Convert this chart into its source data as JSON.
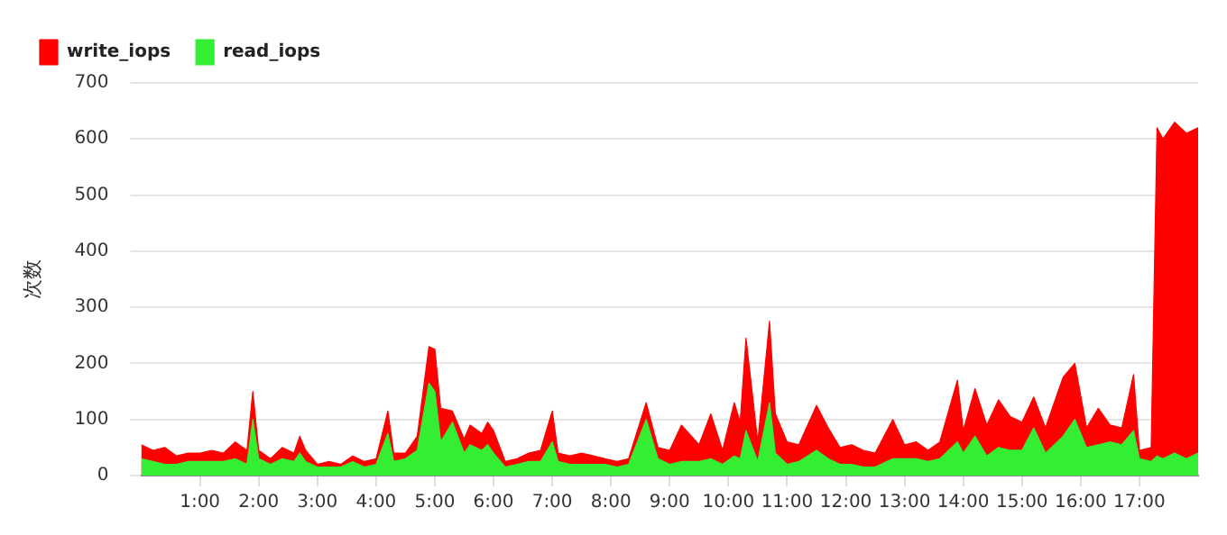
{
  "chart_data": {
    "type": "area",
    "ylabel": "次数",
    "legend": "top left",
    "grid": "y",
    "xlim": [
      0,
      18
    ],
    "xticks": [
      {
        "value": 1,
        "label": "1:00"
      },
      {
        "value": 2,
        "label": "2:00"
      },
      {
        "value": 3,
        "label": "3:00"
      },
      {
        "value": 4,
        "label": "4:00"
      },
      {
        "value": 5,
        "label": "5:00"
      },
      {
        "value": 6,
        "label": "6:00"
      },
      {
        "value": 7,
        "label": "7:00"
      },
      {
        "value": 8,
        "label": "8:00"
      },
      {
        "value": 9,
        "label": "9:00"
      },
      {
        "value": 10,
        "label": "10:00"
      },
      {
        "value": 11,
        "label": "11:00"
      },
      {
        "value": 12,
        "label": "12:00"
      },
      {
        "value": 13,
        "label": "13:00"
      },
      {
        "value": 14,
        "label": "14:00"
      },
      {
        "value": 15,
        "label": "15:00"
      },
      {
        "value": 16,
        "label": "16:00"
      },
      {
        "value": 17,
        "label": "17:00"
      }
    ],
    "ylim": [
      0,
      700
    ],
    "yticks": [
      0,
      100,
      200,
      300,
      400,
      500,
      600,
      700
    ],
    "x": [
      0,
      0.2,
      0.4,
      0.6,
      0.8,
      1.0,
      1.2,
      1.4,
      1.6,
      1.8,
      1.9,
      2.0,
      2.2,
      2.4,
      2.6,
      2.7,
      2.8,
      3.0,
      3.2,
      3.4,
      3.6,
      3.8,
      4.0,
      4.2,
      4.3,
      4.5,
      4.7,
      4.9,
      5.0,
      5.1,
      5.3,
      5.5,
      5.6,
      5.8,
      5.9,
      6.0,
      6.2,
      6.4,
      6.6,
      6.8,
      7.0,
      7.1,
      7.3,
      7.5,
      7.7,
      7.9,
      8.1,
      8.3,
      8.6,
      8.8,
      9.0,
      9.2,
      9.5,
      9.7,
      9.9,
      10.1,
      10.2,
      10.3,
      10.5,
      10.7,
      10.8,
      11.0,
      11.2,
      11.5,
      11.7,
      11.9,
      12.1,
      12.3,
      12.5,
      12.8,
      13.0,
      13.2,
      13.4,
      13.6,
      13.9,
      14.0,
      14.2,
      14.4,
      14.6,
      14.8,
      15.0,
      15.2,
      15.4,
      15.7,
      15.9,
      16.1,
      16.3,
      16.5,
      16.7,
      16.9,
      17.0,
      17.2,
      17.3,
      17.4,
      17.6,
      17.8,
      18.0
    ],
    "series": [
      {
        "name": "write_iops",
        "color": "#ff0000",
        "values": [
          55,
          45,
          50,
          35,
          40,
          40,
          45,
          40,
          60,
          45,
          150,
          45,
          30,
          50,
          40,
          70,
          45,
          20,
          25,
          20,
          35,
          25,
          30,
          115,
          40,
          40,
          70,
          230,
          225,
          120,
          115,
          65,
          90,
          75,
          95,
          80,
          25,
          30,
          40,
          45,
          115,
          40,
          35,
          40,
          35,
          30,
          25,
          30,
          130,
          50,
          45,
          90,
          55,
          110,
          45,
          130,
          95,
          245,
          60,
          275,
          110,
          60,
          55,
          125,
          85,
          50,
          55,
          45,
          40,
          100,
          55,
          60,
          45,
          60,
          170,
          80,
          155,
          90,
          135,
          105,
          95,
          140,
          85,
          175,
          200,
          85,
          120,
          90,
          85,
          180,
          45,
          50,
          620,
          600,
          630,
          610,
          620
        ]
      },
      {
        "name": "read_iops",
        "color": "#33ee33",
        "values": [
          30,
          25,
          20,
          20,
          25,
          25,
          25,
          25,
          30,
          20,
          100,
          30,
          20,
          30,
          25,
          40,
          25,
          15,
          15,
          15,
          25,
          15,
          20,
          75,
          25,
          30,
          45,
          165,
          150,
          60,
          95,
          40,
          55,
          45,
          55,
          40,
          15,
          20,
          25,
          25,
          60,
          25,
          20,
          20,
          20,
          20,
          15,
          20,
          100,
          30,
          20,
          25,
          25,
          30,
          20,
          35,
          30,
          80,
          25,
          130,
          40,
          20,
          25,
          45,
          30,
          20,
          20,
          15,
          15,
          30,
          30,
          30,
          25,
          30,
          60,
          40,
          70,
          35,
          50,
          45,
          45,
          85,
          40,
          70,
          100,
          50,
          55,
          60,
          55,
          80,
          30,
          25,
          35,
          30,
          40,
          30,
          40
        ]
      }
    ]
  }
}
